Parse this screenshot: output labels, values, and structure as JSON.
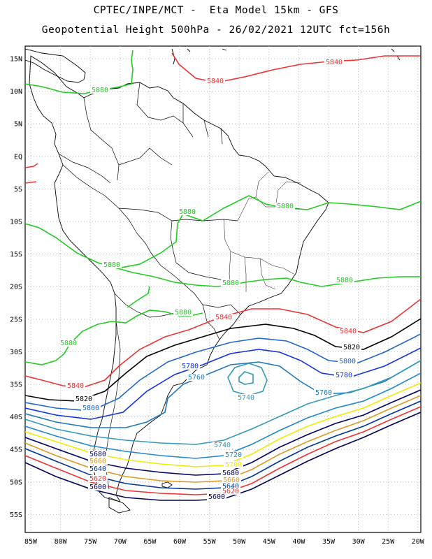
{
  "title_line1": "CPTEC/INPE/MCT -  Eta Model 15km - GFS",
  "title_line2": "Geopotential Height 500hPa - 26/02/2021 12UTC fct=156h",
  "lat_labels": [
    "15N",
    "10N",
    "5N",
    "EQ",
    "5S",
    "10S",
    "15S",
    "20S",
    "25S",
    "30S",
    "35S",
    "40S",
    "45S",
    "50S",
    "55S"
  ],
  "lon_labels": [
    "85W",
    "80W",
    "75W",
    "70W",
    "65W",
    "60W",
    "55W",
    "50W",
    "45W",
    "40W",
    "35W",
    "30W",
    "25W",
    "20W"
  ],
  "contour_colors": {
    "5880": "#22cc22",
    "5840": "#ee3333",
    "5820": "#000000",
    "5800": "#2266cc",
    "5780": "#1133dd",
    "5760": "#2277bb",
    "5740": "#3399bb",
    "5720": "#2288cc",
    "5700": "#eeee00",
    "5680": "#000066",
    "5660": "#dd9922",
    "5640": "#003399",
    "5620": "#ee3333",
    "5600": "#000055"
  },
  "contour_labels": [
    {
      "text": "5880",
      "color": "#22cc22"
    },
    {
      "text": "5880",
      "color": "#22cc22"
    },
    {
      "text": "5880",
      "color": "#22cc22"
    },
    {
      "text": "5880",
      "color": "#22cc22"
    },
    {
      "text": "5880",
      "color": "#22cc22"
    },
    {
      "text": "5880",
      "color": "#22cc22"
    },
    {
      "text": "5880",
      "color": "#22cc22"
    },
    {
      "text": "5880",
      "color": "#22cc22"
    },
    {
      "text": "5840",
      "color": "#ee3333"
    },
    {
      "text": "5840",
      "color": "#ee3333"
    },
    {
      "text": "5840",
      "color": "#ee3333"
    },
    {
      "text": "5840",
      "color": "#ee3333"
    },
    {
      "text": "5840",
      "color": "#ee3333"
    },
    {
      "text": "5820",
      "color": "#000000"
    },
    {
      "text": "5820",
      "color": "#000000"
    },
    {
      "text": "5800",
      "color": "#2266cc"
    },
    {
      "text": "5800",
      "color": "#2266cc"
    },
    {
      "text": "5780",
      "color": "#1133dd"
    },
    {
      "text": "5780",
      "color": "#1133dd"
    },
    {
      "text": "5760",
      "color": "#2277bb"
    },
    {
      "text": "5760",
      "color": "#2277bb"
    },
    {
      "text": "5740",
      "color": "#3399bb"
    },
    {
      "text": "5740",
      "color": "#3399bb"
    },
    {
      "text": "5720",
      "color": "#2288cc"
    },
    {
      "text": "5700",
      "color": "#eeee00"
    },
    {
      "text": "5680",
      "color": "#000066"
    },
    {
      "text": "5660",
      "color": "#dd9922"
    },
    {
      "text": "5640",
      "color": "#003399"
    },
    {
      "text": "5620",
      "color": "#ee3333"
    },
    {
      "text": "5600",
      "color": "#000055"
    },
    {
      "text": "5680",
      "color": "#000066"
    },
    {
      "text": "5660",
      "color": "#dd9922"
    },
    {
      "text": "5640",
      "color": "#003399"
    },
    {
      "text": "5620",
      "color": "#ee3333"
    },
    {
      "text": "5600",
      "color": "#000055"
    }
  ]
}
